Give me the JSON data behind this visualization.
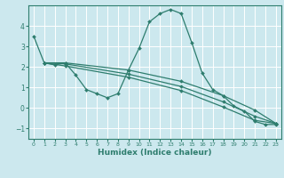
{
  "background_color": "#cce8ee",
  "grid_color": "#ffffff",
  "line_color": "#2e7d6e",
  "xlabel": "Humidex (Indice chaleur)",
  "xlim": [
    -0.5,
    23.5
  ],
  "ylim": [
    -1.5,
    5.0
  ],
  "yticks": [
    -1,
    0,
    1,
    2,
    3,
    4
  ],
  "xticks": [
    0,
    1,
    2,
    3,
    4,
    5,
    6,
    7,
    8,
    9,
    10,
    11,
    12,
    13,
    14,
    15,
    16,
    17,
    18,
    19,
    20,
    21,
    22,
    23
  ],
  "lines": [
    {
      "x": [
        0,
        1,
        2,
        3,
        4,
        5,
        6,
        7,
        8,
        9,
        10,
        11,
        12,
        13,
        14,
        15,
        16,
        17,
        18,
        19,
        20,
        21,
        22,
        23
      ],
      "y": [
        3.5,
        2.2,
        2.1,
        2.2,
        1.6,
        0.9,
        0.7,
        0.5,
        0.7,
        1.85,
        2.9,
        4.2,
        4.6,
        4.8,
        4.6,
        3.2,
        1.7,
        0.9,
        0.6,
        0.1,
        -0.15,
        -0.65,
        -0.8,
        -0.8
      ]
    },
    {
      "x": [
        1,
        3,
        9,
        14,
        18,
        21,
        23
      ],
      "y": [
        2.2,
        2.2,
        1.85,
        1.3,
        0.6,
        -0.1,
        -0.75
      ]
    },
    {
      "x": [
        1,
        3,
        9,
        14,
        18,
        21,
        23
      ],
      "y": [
        2.2,
        2.15,
        1.65,
        1.05,
        0.3,
        -0.4,
        -0.75
      ]
    },
    {
      "x": [
        1,
        3,
        9,
        14,
        18,
        21,
        23
      ],
      "y": [
        2.2,
        2.05,
        1.5,
        0.85,
        0.05,
        -0.6,
        -0.75
      ]
    }
  ]
}
